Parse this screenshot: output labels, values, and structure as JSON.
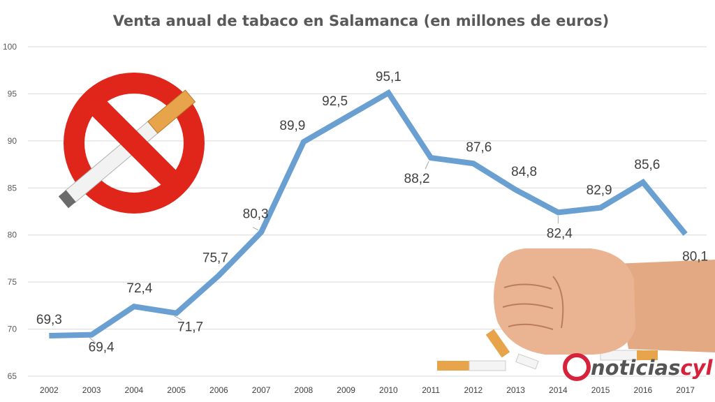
{
  "colors": {
    "series": "#6a9fd2",
    "grid": "#d9d9d9",
    "ban_red": "#e0251b",
    "cigarette_filter": "#e8a44a",
    "brand_red": "#d6223a",
    "brand_gray": "#555555"
  },
  "illustrations": {
    "no_smoking": "no-smoking-sign-icon",
    "fist": "fist-crushing-cigarettes-illustration"
  },
  "brand": {
    "text_main": "noticias",
    "text_accent": "cyl"
  },
  "chart_data": {
    "type": "line",
    "title": "Venta anual de tabaco en Salamanca (en millones de euros)",
    "xlabel": "",
    "ylabel": "",
    "ylim": [
      65,
      100
    ],
    "yticks": [
      65,
      70,
      75,
      80,
      85,
      90,
      95,
      100
    ],
    "grid": true,
    "legend": "none",
    "categories": [
      "2002",
      "2003",
      "2004",
      "2005",
      "2006",
      "2007",
      "2008",
      "2009",
      "2010",
      "2011",
      "2012",
      "2013",
      "2014",
      "2015",
      "2016",
      "2017"
    ],
    "series": [
      {
        "values": [
          69.3,
          69.4,
          72.4,
          71.7,
          75.7,
          80.3,
          89.9,
          92.5,
          95.1,
          88.2,
          87.6,
          84.8,
          82.4,
          82.9,
          85.6,
          80.1
        ],
        "labels": [
          "69,3",
          "69,4",
          "72,4",
          "71,7",
          "75,7",
          "80,3",
          "89,9",
          "92,5",
          "95,1",
          "88,2",
          "87,6",
          "84,8",
          "82,4",
          "82,9",
          "85,6",
          "80,1"
        ]
      }
    ]
  }
}
